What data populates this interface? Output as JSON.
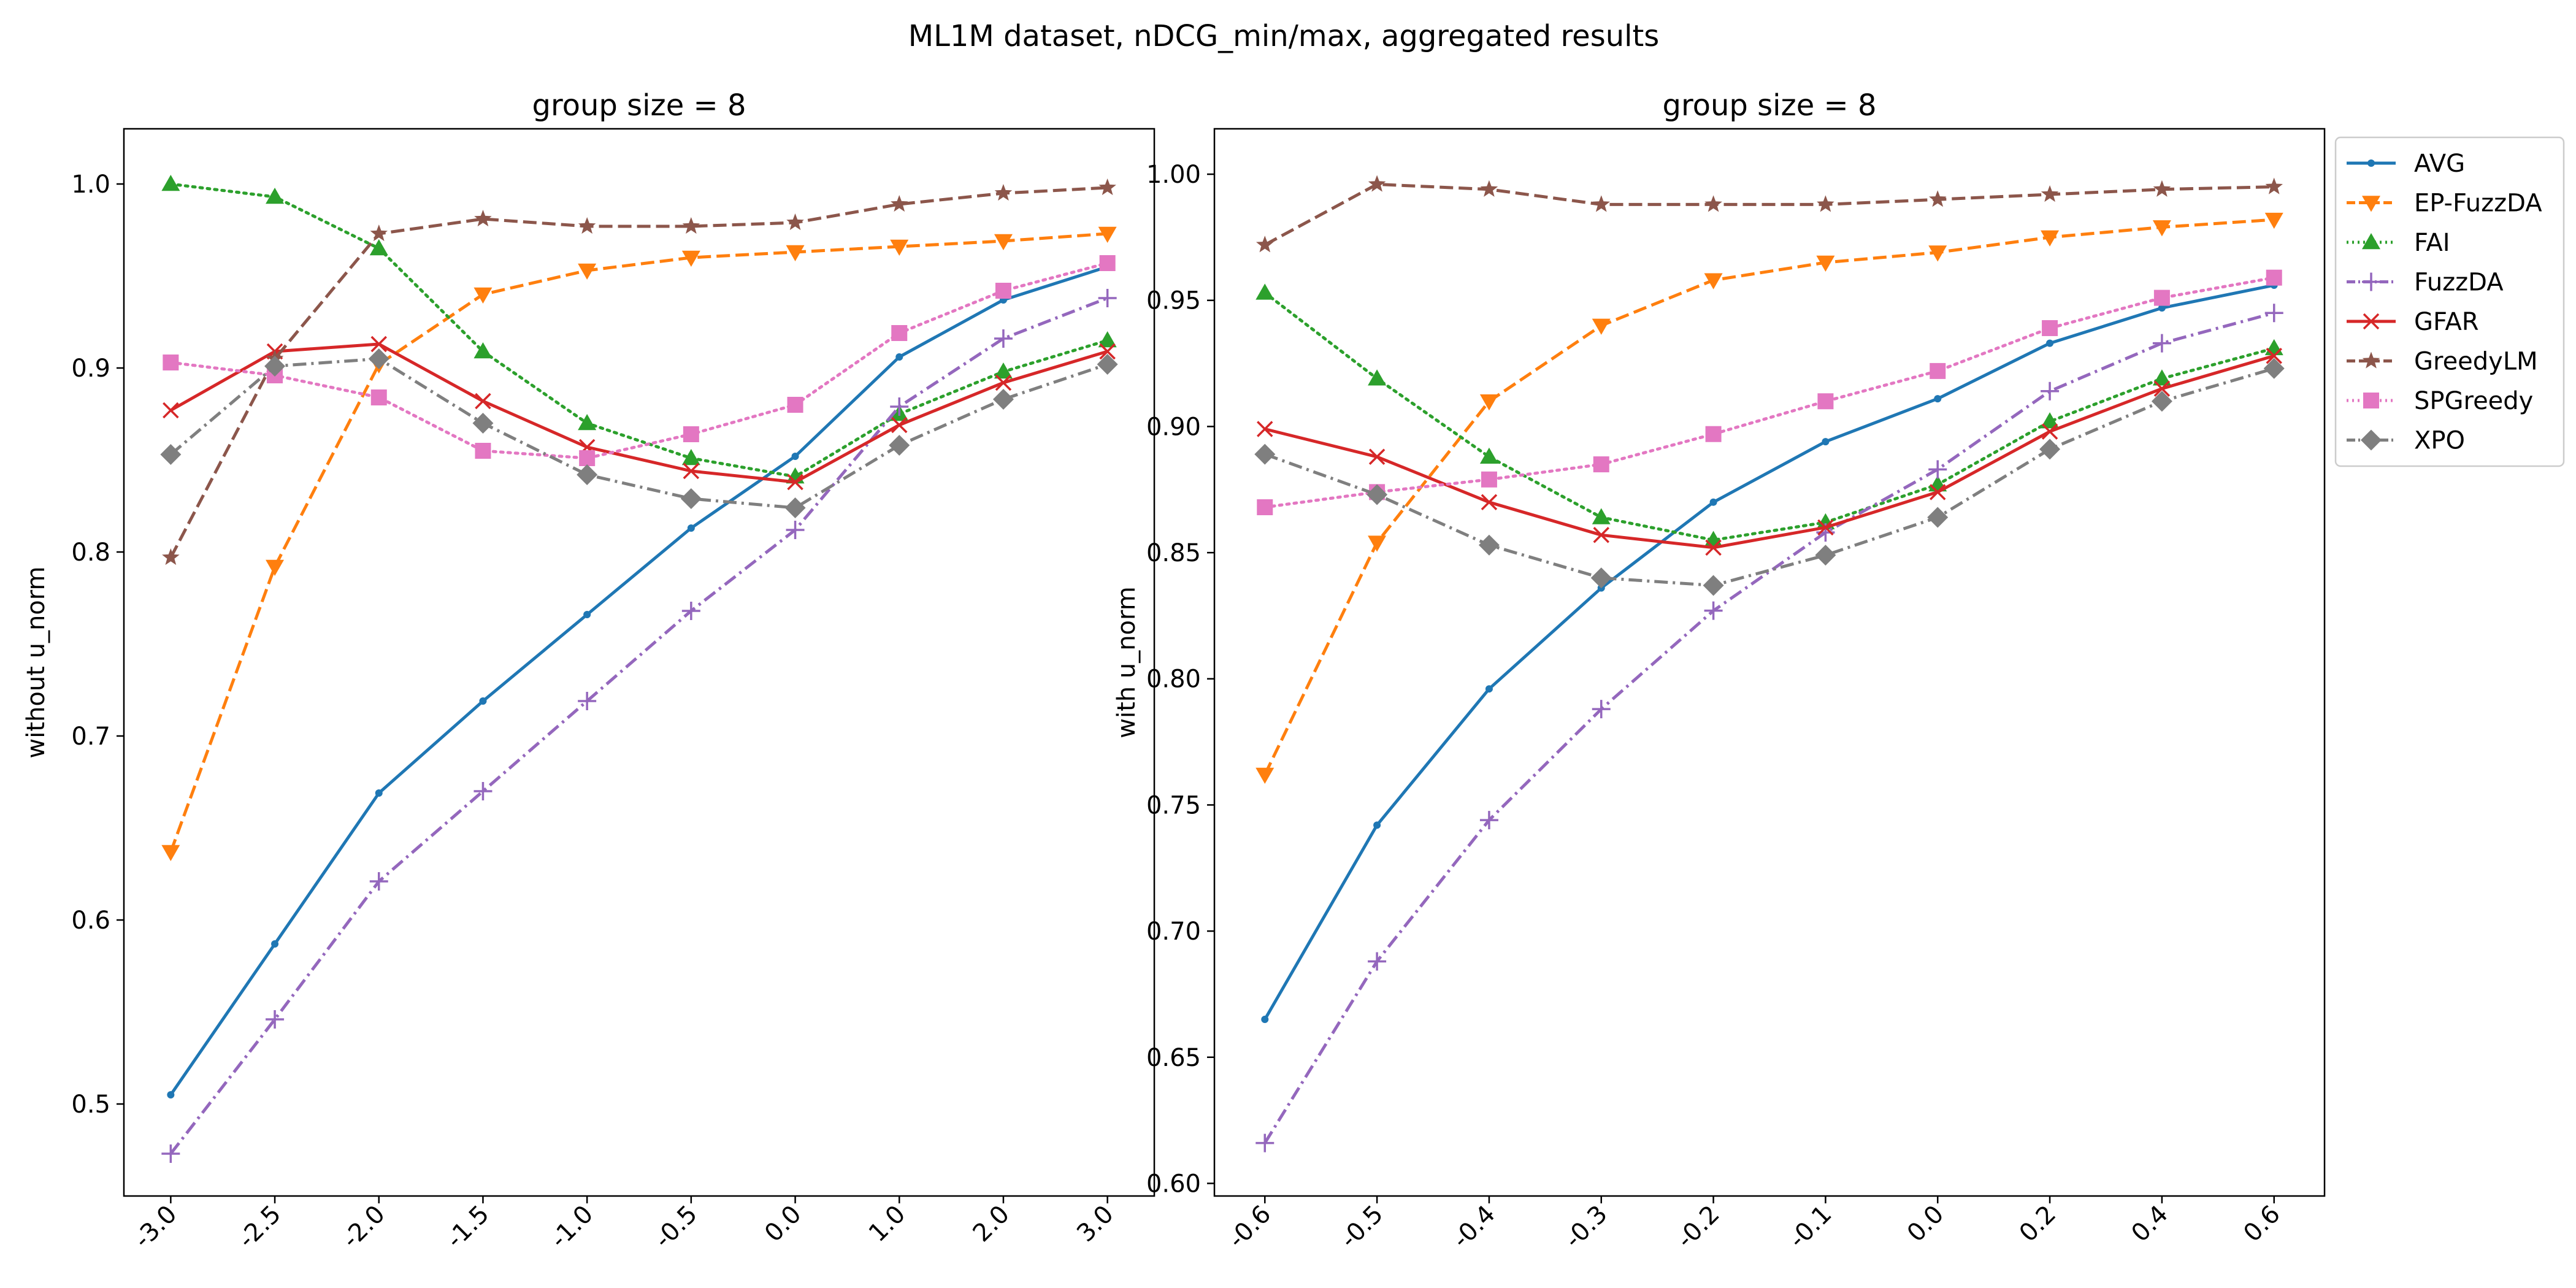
{
  "figure_title": "ML1M dataset, nDCG_min/max, aggregated results",
  "chart_data": [
    {
      "type": "line",
      "title": "group size = 8",
      "xlabel": "",
      "ylabel": "without u_norm",
      "categories": [
        "-3.0",
        "-2.5",
        "-2.0",
        "-1.5",
        "-1.0",
        "-0.5",
        "0.0",
        "1.0",
        "2.0",
        "3.0"
      ],
      "ylim": [
        0.45,
        1.03
      ],
      "yticks": [
        "0.5",
        "0.6",
        "0.7",
        "0.8",
        "0.9",
        "1.0"
      ],
      "grid": false,
      "series": [
        {
          "name": "AVG",
          "color": "#1f77b4",
          "marker": "dot",
          "dash": "solid",
          "values": [
            0.505,
            0.587,
            0.669,
            0.719,
            0.766,
            0.813,
            0.852,
            0.906,
            0.937,
            0.955
          ]
        },
        {
          "name": "EP-FuzzDA",
          "color": "#ff7f0e",
          "marker": "triangle-down",
          "dash": "dashed",
          "values": [
            0.637,
            0.792,
            0.902,
            0.94,
            0.953,
            0.96,
            0.963,
            0.966,
            0.969,
            0.973
          ]
        },
        {
          "name": "FAI",
          "color": "#2ca02c",
          "marker": "triangle-up",
          "dash": "dotted",
          "values": [
            1.0,
            0.993,
            0.965,
            0.909,
            0.87,
            0.851,
            0.841,
            0.875,
            0.898,
            0.915
          ]
        },
        {
          "name": "FuzzDA",
          "color": "#9467bd",
          "marker": "plus",
          "dash": "dashdot",
          "values": [
            0.473,
            0.546,
            0.621,
            0.67,
            0.719,
            0.768,
            0.812,
            0.879,
            0.916,
            0.938
          ]
        },
        {
          "name": "GFAR",
          "color": "#d62728",
          "marker": "x",
          "dash": "solid",
          "values": [
            0.877,
            0.909,
            0.913,
            0.882,
            0.857,
            0.844,
            0.838,
            0.869,
            0.892,
            0.909
          ]
        },
        {
          "name": "GreedyLM",
          "color": "#8c564b",
          "marker": "star",
          "dash": "dashed",
          "values": [
            0.797,
            0.905,
            0.973,
            0.981,
            0.977,
            0.977,
            0.979,
            0.989,
            0.995,
            0.998
          ]
        },
        {
          "name": "SPGreedy",
          "color": "#e377c2",
          "marker": "square",
          "dash": "dotted",
          "values": [
            0.903,
            0.896,
            0.884,
            0.855,
            0.851,
            0.864,
            0.88,
            0.919,
            0.942,
            0.957
          ]
        },
        {
          "name": "XPO",
          "color": "#7f7f7f",
          "marker": "diamond",
          "dash": "dashdot",
          "values": [
            0.853,
            0.901,
            0.905,
            0.87,
            0.842,
            0.829,
            0.824,
            0.858,
            0.883,
            0.902
          ]
        }
      ]
    },
    {
      "type": "line",
      "title": "group size = 8",
      "xlabel": "",
      "ylabel": "with u_norm",
      "categories": [
        "-0.6",
        "-0.5",
        "-0.4",
        "-0.3",
        "-0.2",
        "-0.1",
        "0.0",
        "0.2",
        "0.4",
        "0.6"
      ],
      "ylim": [
        0.595,
        1.018
      ],
      "yticks": [
        "0.60",
        "0.65",
        "0.70",
        "0.75",
        "0.80",
        "0.85",
        "0.90",
        "0.95",
        "1.00"
      ],
      "grid": false,
      "legend": "right, outside the plot",
      "series": [
        {
          "name": "AVG",
          "color": "#1f77b4",
          "marker": "dot",
          "dash": "solid",
          "values": [
            0.665,
            0.742,
            0.796,
            0.836,
            0.87,
            0.894,
            0.911,
            0.933,
            0.947,
            0.956
          ]
        },
        {
          "name": "EP-FuzzDA",
          "color": "#ff7f0e",
          "marker": "triangle-down",
          "dash": "dashed",
          "values": [
            0.762,
            0.854,
            0.91,
            0.94,
            0.958,
            0.965,
            0.969,
            0.975,
            0.979,
            0.982
          ]
        },
        {
          "name": "FAI",
          "color": "#2ca02c",
          "marker": "triangle-up",
          "dash": "dotted",
          "values": [
            0.953,
            0.919,
            0.888,
            0.864,
            0.855,
            0.862,
            0.877,
            0.902,
            0.919,
            0.931
          ]
        },
        {
          "name": "FuzzDA",
          "color": "#9467bd",
          "marker": "plus",
          "dash": "dashdot",
          "values": [
            0.616,
            0.688,
            0.744,
            0.788,
            0.827,
            0.858,
            0.883,
            0.914,
            0.933,
            0.945
          ]
        },
        {
          "name": "GFAR",
          "color": "#d62728",
          "marker": "x",
          "dash": "solid",
          "values": [
            0.899,
            0.888,
            0.87,
            0.857,
            0.852,
            0.86,
            0.874,
            0.898,
            0.915,
            0.928
          ]
        },
        {
          "name": "GreedyLM",
          "color": "#8c564b",
          "marker": "star",
          "dash": "dashed",
          "values": [
            0.972,
            0.996,
            0.994,
            0.988,
            0.988,
            0.988,
            0.99,
            0.992,
            0.994,
            0.995
          ]
        },
        {
          "name": "SPGreedy",
          "color": "#e377c2",
          "marker": "square",
          "dash": "dotted",
          "values": [
            0.868,
            0.874,
            0.879,
            0.885,
            0.897,
            0.91,
            0.922,
            0.939,
            0.951,
            0.959
          ]
        },
        {
          "name": "XPO",
          "color": "#7f7f7f",
          "marker": "diamond",
          "dash": "dashdot",
          "values": [
            0.889,
            0.873,
            0.853,
            0.84,
            0.837,
            0.849,
            0.864,
            0.891,
            0.91,
            0.923
          ]
        }
      ]
    }
  ]
}
